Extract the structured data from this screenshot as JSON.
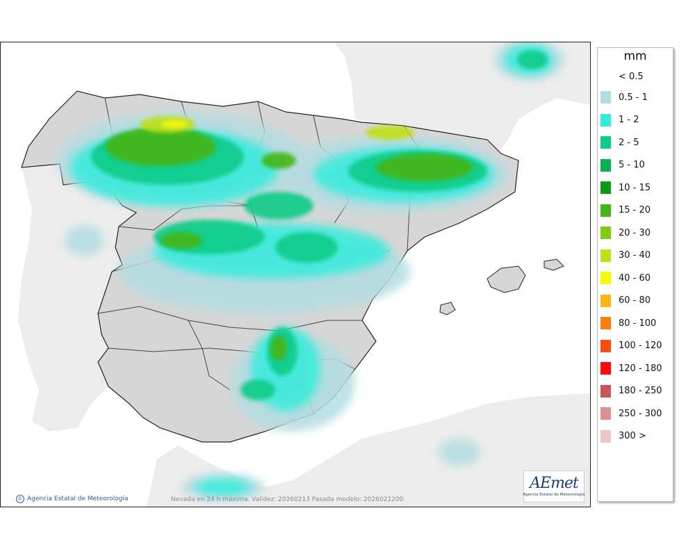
{
  "legend": {
    "unit": "mm",
    "first_label": "< 0.5",
    "items": [
      {
        "label": "0.5 - 1",
        "color": "#b3dde2"
      },
      {
        "label": "1 - 2",
        "color": "#35ecdc"
      },
      {
        "label": "2 - 5",
        "color": "#11cc88"
      },
      {
        "label": "5 - 10",
        "color": "#09b050"
      },
      {
        "label": "10 - 15",
        "color": "#0b9a16"
      },
      {
        "label": "15 - 20",
        "color": "#44b516"
      },
      {
        "label": "20 - 30",
        "color": "#7fcc10"
      },
      {
        "label": "30 - 40",
        "color": "#c0e016"
      },
      {
        "label": "40 - 60",
        "color": "#f5fa00"
      },
      {
        "label": "60 - 80",
        "color": "#f9b716"
      },
      {
        "label": "80 - 100",
        "color": "#fb7e0a"
      },
      {
        "label": "100 - 120",
        "color": "#fc4a10"
      },
      {
        "label": "120 - 180",
        "color": "#fe0706"
      },
      {
        "label": "180 - 250",
        "color": "#cc5555"
      },
      {
        "label": "250 - 300",
        "color": "#de8f8f"
      },
      {
        "label": "300 >",
        "color": "#ecc5c5"
      }
    ]
  },
  "map": {
    "caption": "Nevada en 24 h máxima. Validez: 20260213 Pasada modelo: 2026021200",
    "credit": "Agencia Estatal de Meteorología",
    "logo_text": "AEmet",
    "logo_sub": "Agencia Estatal de Meteorología",
    "colors": {
      "sea": "#ffffff",
      "land": "#d6d6d6",
      "foreign_land": "#ececec",
      "border": "#222222"
    }
  }
}
